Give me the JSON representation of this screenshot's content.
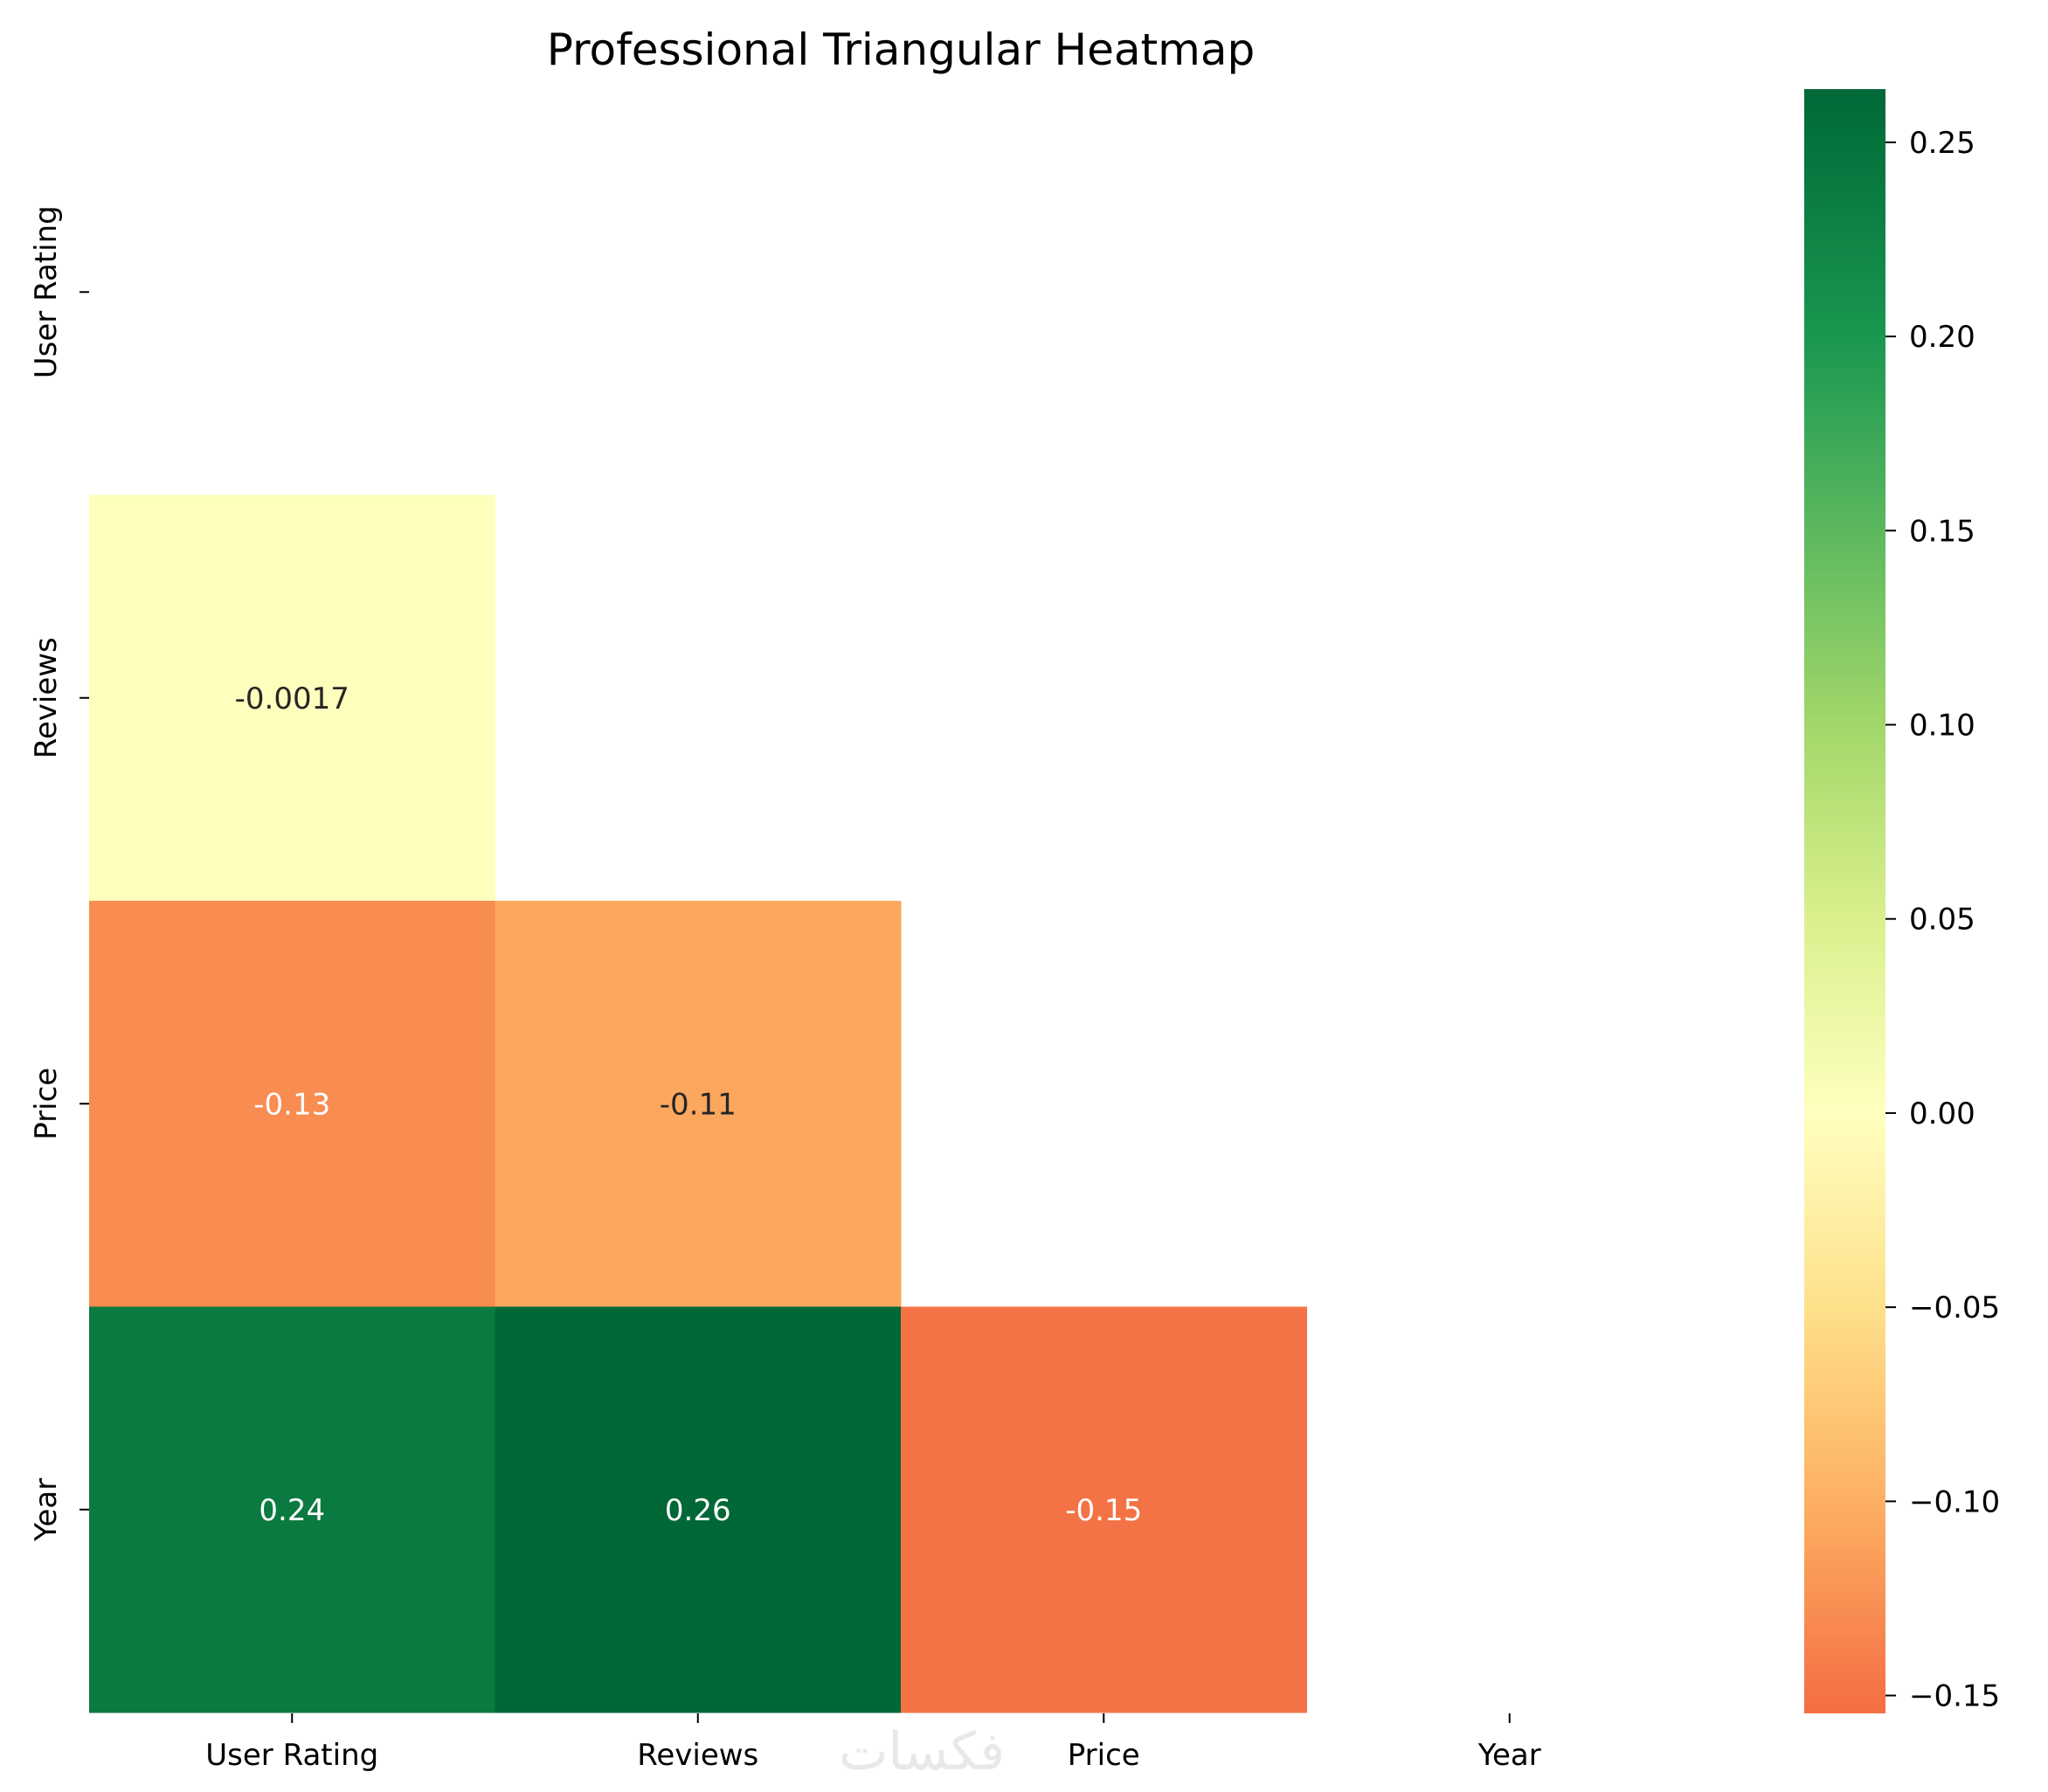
{
  "chart_data": {
    "type": "heatmap",
    "title": "Professional Triangular Heatmap",
    "xlabel": "",
    "ylabel": "",
    "x_categories": [
      "User Rating",
      "Reviews",
      "Price",
      "Year"
    ],
    "y_categories": [
      "User Rating",
      "Reviews",
      "Price",
      "Year"
    ],
    "mask": "upper triangle including diagonal",
    "cells": [
      {
        "row": 1,
        "col": 0,
        "value": -0.0017,
        "label": "-0.0017",
        "color": "#fefebd"
      },
      {
        "row": 2,
        "col": 0,
        "value": -0.13,
        "label": "-0.13",
        "color": "#f88c51"
      },
      {
        "row": 2,
        "col": 1,
        "value": -0.11,
        "label": "-0.11",
        "color": "#fba75e"
      },
      {
        "row": 3,
        "col": 0,
        "value": 0.24,
        "label": "0.24",
        "color": "#0b7a40"
      },
      {
        "row": 3,
        "col": 1,
        "value": 0.26,
        "label": "0.26",
        "color": "#006837"
      },
      {
        "row": 3,
        "col": 2,
        "value": -0.15,
        "label": "-0.15",
        "color": "#f47346"
      }
    ],
    "colorbar": {
      "colormap": "RdYlGn",
      "center": 0,
      "range": [
        -0.1546,
        0.2637
      ],
      "ticks": [
        0.25,
        0.2,
        0.15,
        0.1,
        0.05,
        0.0,
        -0.05,
        -0.1,
        -0.15
      ],
      "tick_labels": [
        "0.25",
        "0.20",
        "0.15",
        "0.10",
        "0.05",
        "0.00",
        "−0.05",
        "−0.10",
        "−0.15"
      ],
      "stops": [
        {
          "value": 0.2637,
          "color": "#006837"
        },
        {
          "value": 0.2,
          "color": "#199750"
        },
        {
          "value": 0.15,
          "color": "#5cb85f"
        },
        {
          "value": 0.1,
          "color": "#a2d76a"
        },
        {
          "value": 0.05,
          "color": "#daf08d"
        },
        {
          "value": 0.0,
          "color": "#ffffbf"
        },
        {
          "value": -0.05,
          "color": "#fee08b"
        },
        {
          "value": -0.1,
          "color": "#fdb063"
        },
        {
          "value": -0.1546,
          "color": "#f46d43"
        }
      ]
    },
    "watermark": "فكسات"
  }
}
